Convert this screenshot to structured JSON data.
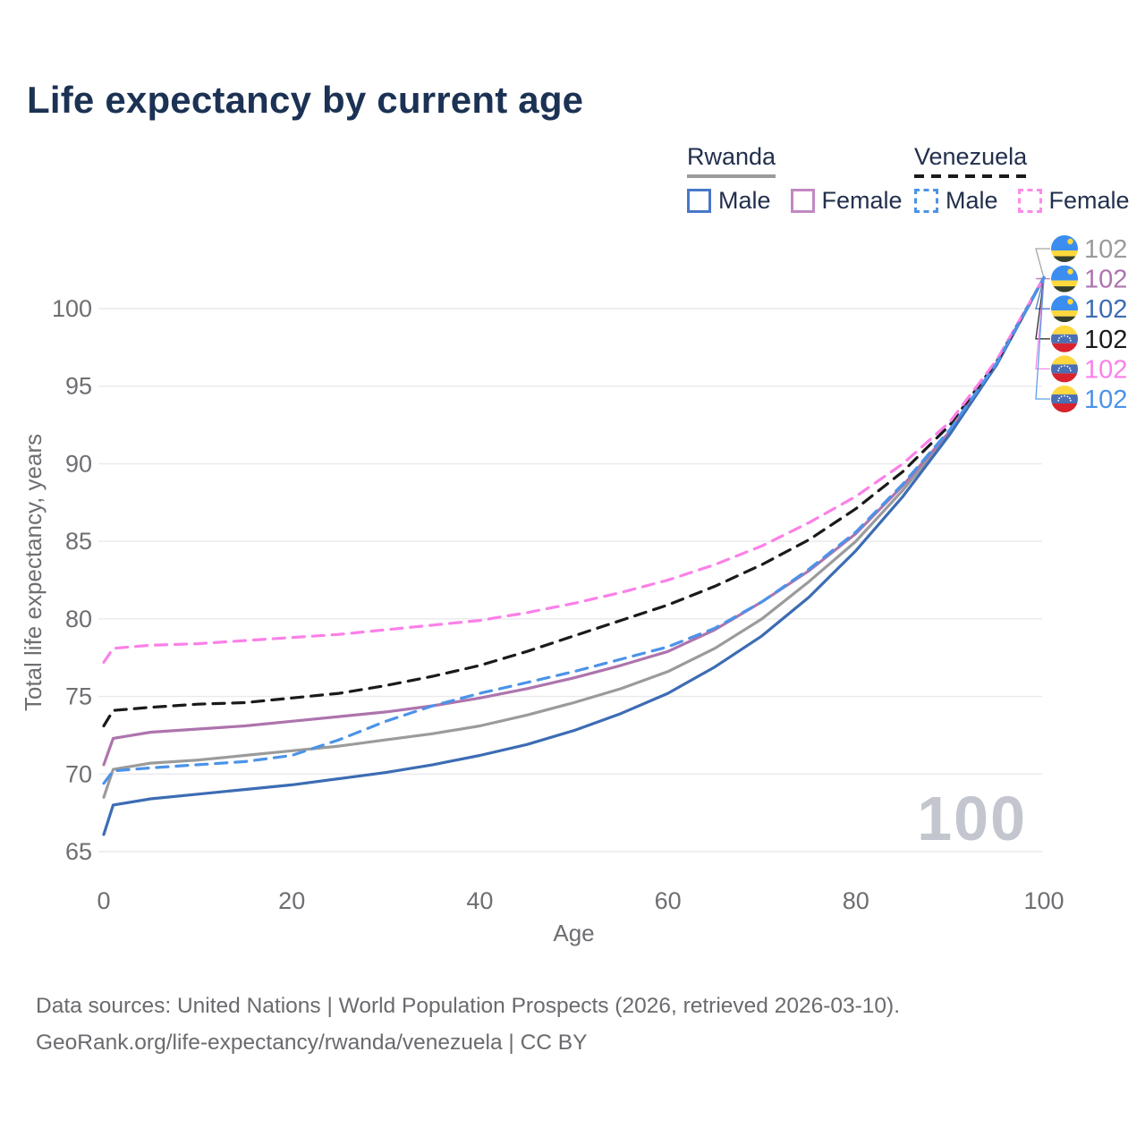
{
  "title": "Life expectancy by current age",
  "legend": {
    "groups": [
      {
        "name": "Rwanda",
        "line_style": "solid",
        "underline_color": "#9a9a9a",
        "items": [
          {
            "label": "Male",
            "color": "#4878c8",
            "dashed": false
          },
          {
            "label": "Female",
            "color": "#c289c2",
            "dashed": false
          }
        ]
      },
      {
        "name": "Venezuela",
        "line_style": "dashed",
        "underline_color": "#1a1a1a",
        "items": [
          {
            "label": "Male",
            "color": "#4b93e8",
            "dashed": true
          },
          {
            "label": "Female",
            "color": "#fc8ae8",
            "dashed": true
          }
        ]
      }
    ]
  },
  "chart_data": {
    "type": "line",
    "title": "Life expectancy by current age",
    "xlabel": "Age",
    "ylabel": "Total life expectancy, years",
    "xlim": [
      0,
      100
    ],
    "ylim": [
      65,
      102
    ],
    "xticks": [
      0,
      20,
      40,
      60,
      80,
      100
    ],
    "yticks": [
      65,
      70,
      75,
      80,
      85,
      90,
      95,
      100
    ],
    "grid": true,
    "legend_position": "top-right",
    "age_indicator": "100",
    "x": [
      0,
      1,
      5,
      10,
      15,
      20,
      25,
      30,
      35,
      40,
      45,
      50,
      55,
      60,
      65,
      70,
      75,
      80,
      85,
      90,
      95,
      100
    ],
    "series": [
      {
        "id": "rwanda-both",
        "name": "Rwanda",
        "country": "Rwanda",
        "sex": "Both",
        "color": "#9b9b9b",
        "dashed": false,
        "flag": "rwanda",
        "end_label": "102",
        "values": [
          68.5,
          70.3,
          70.7,
          70.9,
          71.2,
          71.5,
          71.8,
          72.2,
          72.6,
          73.1,
          73.8,
          74.6,
          75.5,
          76.6,
          78.1,
          80.0,
          82.4,
          85.0,
          88.3,
          92.0,
          96.4,
          102
        ]
      },
      {
        "id": "rwanda-female",
        "name": "Rwanda Female",
        "country": "Rwanda",
        "sex": "Female",
        "color": "#ad74ad",
        "dashed": false,
        "flag": "rwanda",
        "end_label": "102",
        "values": [
          70.6,
          72.3,
          72.7,
          72.9,
          73.1,
          73.4,
          73.7,
          74.0,
          74.4,
          74.9,
          75.5,
          76.2,
          77.0,
          77.9,
          79.3,
          81.1,
          83.1,
          85.5,
          88.6,
          92.1,
          96.5,
          102
        ]
      },
      {
        "id": "rwanda-male",
        "name": "Rwanda Male",
        "country": "Rwanda",
        "sex": "Male",
        "color": "#3c6cb4",
        "dashed": false,
        "flag": "rwanda",
        "end_label": "102",
        "values": [
          66.1,
          68.0,
          68.4,
          68.7,
          69.0,
          69.3,
          69.7,
          70.1,
          70.6,
          71.2,
          71.9,
          72.8,
          73.9,
          75.2,
          76.9,
          78.9,
          81.4,
          84.4,
          87.9,
          91.9,
          96.4,
          102
        ]
      },
      {
        "id": "venezuela-both",
        "name": "Venezuela",
        "country": "Venezuela",
        "sex": "Both",
        "color": "#1a1a1a",
        "dashed": true,
        "flag": "venezuela",
        "end_label": "102",
        "values": [
          73.1,
          74.1,
          74.3,
          74.5,
          74.6,
          74.9,
          75.2,
          75.7,
          76.3,
          77.0,
          77.9,
          78.9,
          79.9,
          80.9,
          82.1,
          83.5,
          85.1,
          87.1,
          89.5,
          92.5,
          96.6,
          102
        ]
      },
      {
        "id": "venezuela-female",
        "name": "Venezuela Female",
        "country": "Venezuela",
        "sex": "Female",
        "color": "#fb80e8",
        "dashed": true,
        "flag": "venezuela",
        "end_label": "102",
        "values": [
          77.2,
          78.1,
          78.3,
          78.4,
          78.6,
          78.8,
          79.0,
          79.3,
          79.6,
          79.9,
          80.4,
          81.0,
          81.7,
          82.5,
          83.5,
          84.7,
          86.2,
          87.9,
          90.0,
          92.7,
          96.7,
          102
        ]
      },
      {
        "id": "venezuela-male",
        "name": "Venezuela Male",
        "country": "Venezuela",
        "sex": "Male",
        "color": "#4b93e8",
        "dashed": true,
        "flag": "venezuela",
        "end_label": "102",
        "values": [
          69.4,
          70.2,
          70.4,
          70.6,
          70.8,
          71.2,
          72.2,
          73.4,
          74.4,
          75.2,
          75.9,
          76.6,
          77.4,
          78.2,
          79.4,
          81.1,
          83.2,
          85.6,
          88.7,
          92.2,
          96.5,
          102
        ]
      }
    ]
  },
  "footer": {
    "line1": "Data sources: United Nations | World Population Prospects (2026, retrieved 2026-03-10).",
    "line2": "GeoRank.org/life-expectancy/rwanda/venezuela | CC BY"
  }
}
